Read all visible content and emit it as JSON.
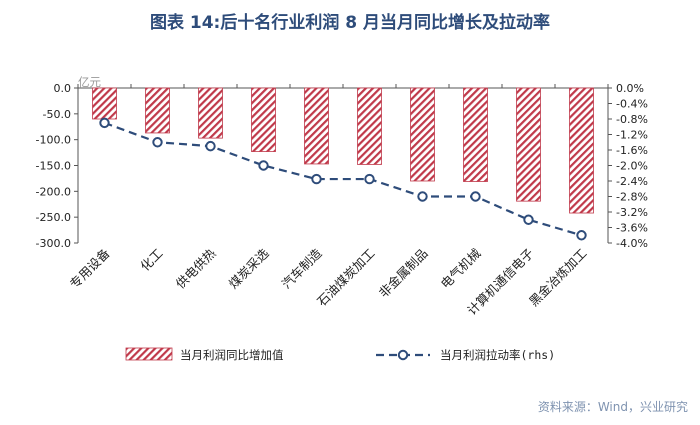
{
  "title": "图表 14:后十名行业利润 8 月当月同比增长及拉动率",
  "source": "资料来源：Wind，兴业研究",
  "chart_data": {
    "type": "bar",
    "title": "图表 14:后十名行业利润 8 月当月同比增长及拉动率",
    "categories": [
      "专用设备",
      "化工",
      "供电供热",
      "煤炭采选",
      "汽车制造",
      "石油煤炭加工",
      "非金属制品",
      "电气机械",
      "计算机通信电子",
      "黑金冶炼加工"
    ],
    "series": [
      {
        "name": "当月利润同比增加值",
        "type": "bar",
        "axis": "left",
        "values": [
          -60,
          -87,
          -97,
          -123,
          -147,
          -148,
          -180,
          -181,
          -219,
          -242
        ]
      },
      {
        "name": "当月利润拉动率(rhs)",
        "type": "line",
        "axis": "right",
        "values": [
          -0.9,
          -1.4,
          -1.5,
          -2.0,
          -2.35,
          -2.35,
          -2.8,
          -2.8,
          -3.4,
          -3.8
        ]
      }
    ],
    "left_axis": {
      "unit": "亿元",
      "ylim": [
        -300,
        0
      ],
      "ticks": [
        "0.0",
        "-50.0",
        "-100.0",
        "-150.0",
        "-200.0",
        "-250.0",
        "-300.0"
      ]
    },
    "right_axis": {
      "ylim": [
        -4.0,
        0
      ],
      "ticks": [
        "0.0%",
        "-0.4%",
        "-0.8%",
        "-1.2%",
        "-1.6%",
        "-2.0%",
        "-2.4%",
        "-2.8%",
        "-3.2%",
        "-3.6%",
        "-4.0%"
      ]
    },
    "colors": {
      "bar_stripe": "#c0394a",
      "line": "#2e4c7a"
    },
    "legend_position": "bottom"
  }
}
